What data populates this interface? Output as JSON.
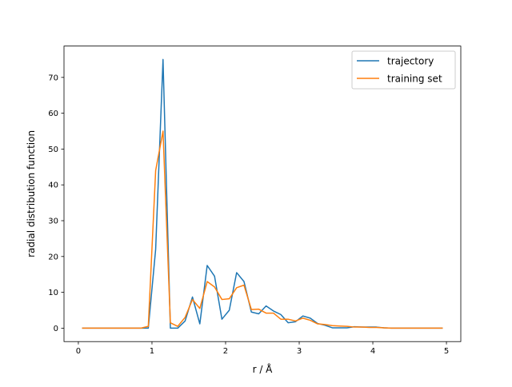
{
  "chart_data": {
    "type": "line",
    "title": "",
    "xlabel": "r / Å",
    "ylabel": "radial distribution function",
    "xlim": [
      -0.195,
      5.195
    ],
    "ylim": [
      -3.75,
      78.75
    ],
    "xticks": [
      0,
      1,
      2,
      3,
      4,
      5
    ],
    "yticks": [
      0,
      10,
      20,
      30,
      40,
      50,
      60,
      70
    ],
    "grid": false,
    "legend_position": "top-right",
    "x": [
      0.05,
      0.15,
      0.25,
      0.35,
      0.45,
      0.55,
      0.65,
      0.75,
      0.85,
      0.95,
      1.05,
      1.15,
      1.25,
      1.35,
      1.45,
      1.55,
      1.65,
      1.75,
      1.85,
      1.95,
      2.05,
      2.15,
      2.25,
      2.35,
      2.45,
      2.55,
      2.65,
      2.75,
      2.85,
      2.95,
      3.05,
      3.15,
      3.25,
      3.35,
      3.45,
      3.55,
      3.65,
      3.75,
      3.85,
      3.95,
      4.05,
      4.15,
      4.25,
      4.35,
      4.45,
      4.55,
      4.65,
      4.75,
      4.85,
      4.95
    ],
    "series": [
      {
        "name": "trajectory",
        "color": "#1f77b4",
        "values": [
          0,
          0,
          0,
          0,
          0,
          0,
          0,
          0,
          0,
          0,
          22,
          75,
          0,
          0,
          2,
          8.7,
          1.2,
          17.5,
          14.5,
          2.5,
          5,
          15.5,
          13,
          4.5,
          4,
          6.2,
          4.8,
          3.8,
          1.5,
          1.8,
          3.4,
          2.8,
          1.3,
          0.8,
          0.1,
          0.1,
          0.1,
          0.4,
          0.3,
          0.3,
          0.3,
          0.1,
          0,
          0,
          0,
          0,
          0,
          0,
          0,
          0
        ]
      },
      {
        "name": "training set",
        "color": "#ff7f0e",
        "values": [
          0,
          0,
          0,
          0,
          0,
          0,
          0,
          0,
          0,
          0.5,
          44,
          55,
          1.5,
          0.5,
          3,
          8,
          5.5,
          13,
          11.5,
          8,
          8.2,
          11.3,
          12,
          5.2,
          5.3,
          4.2,
          4.2,
          2.5,
          2.5,
          2,
          2.8,
          2.2,
          1.2,
          1,
          0.7,
          0.6,
          0.5,
          0.3,
          0.3,
          0.2,
          0.2,
          0.1,
          0,
          0,
          0,
          0,
          0,
          0,
          0,
          0
        ]
      }
    ]
  }
}
